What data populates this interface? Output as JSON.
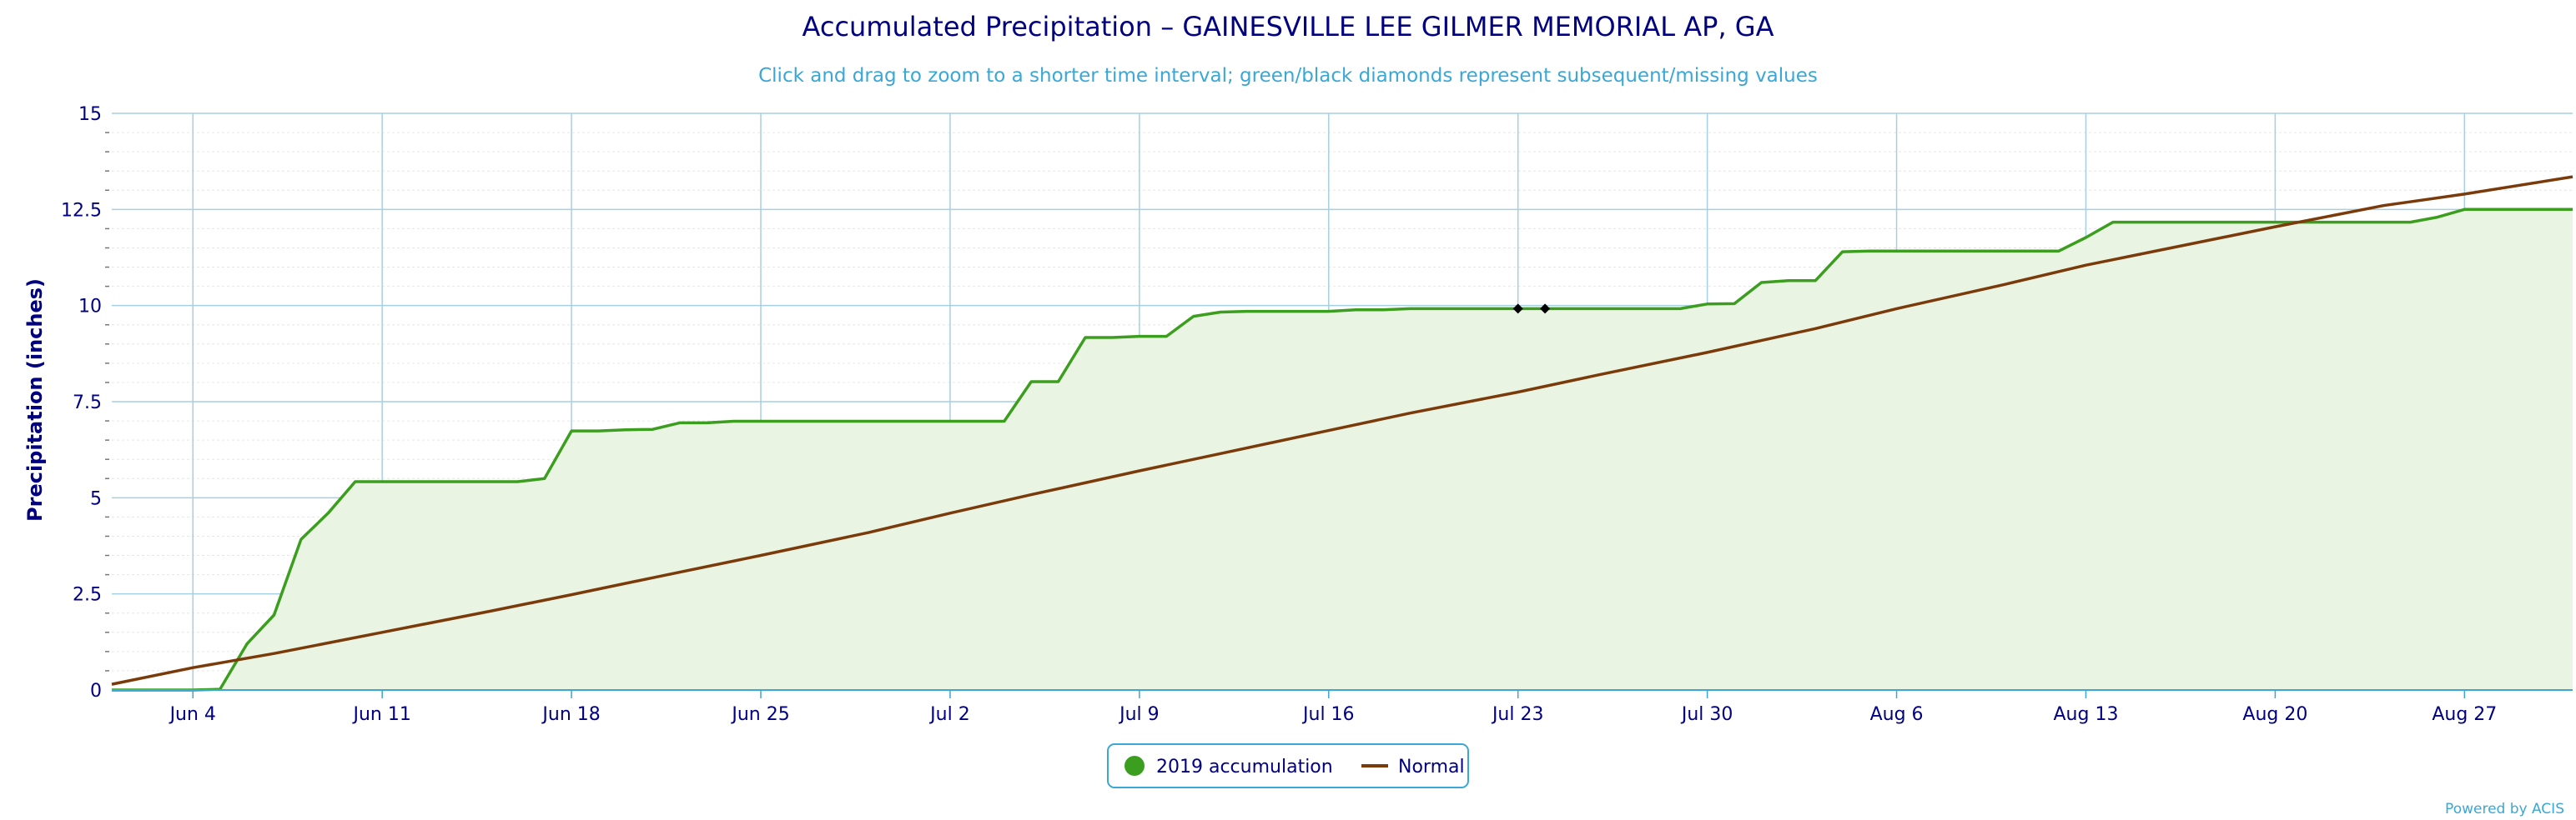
{
  "chart_data": {
    "type": "area",
    "title": "Accumulated Precipitation – GAINESVILLE LEE GILMER MEMORIAL AP, GA",
    "subtitle": "Click and drag to zoom to a shorter time interval; green/black diamonds represent subsequent/missing values",
    "ylabel": "Precipitation (inches)",
    "xlabel": "",
    "x_range": [
      "2019-06-01",
      "2019-08-31"
    ],
    "ylim": [
      0,
      15
    ],
    "y_ticks": [
      0,
      2.5,
      5,
      7.5,
      10,
      12.5,
      15
    ],
    "y_tick_labels": [
      "0",
      "2.5",
      "5",
      "7.5",
      "10",
      "12.5",
      "15"
    ],
    "x_ticks": [
      {
        "date": "2019-06-04",
        "label": "Jun 4"
      },
      {
        "date": "2019-06-11",
        "label": "Jun 11"
      },
      {
        "date": "2019-06-18",
        "label": "Jun 18"
      },
      {
        "date": "2019-06-25",
        "label": "Jun 25"
      },
      {
        "date": "2019-07-02",
        "label": "Jul 2"
      },
      {
        "date": "2019-07-09",
        "label": "Jul 9"
      },
      {
        "date": "2019-07-16",
        "label": "Jul 16"
      },
      {
        "date": "2019-07-23",
        "label": "Jul 23"
      },
      {
        "date": "2019-07-30",
        "label": "Jul 30"
      },
      {
        "date": "2019-08-06",
        "label": "Aug 6"
      },
      {
        "date": "2019-08-13",
        "label": "Aug 13"
      },
      {
        "date": "2019-08-20",
        "label": "Aug 20"
      },
      {
        "date": "2019-08-27",
        "label": "Aug 27"
      }
    ],
    "grid": true,
    "legend_position": "bottom-center",
    "series": [
      {
        "name": "2019 accumulation",
        "color": "#3c9e1e",
        "fill": "#eaf4e3",
        "points": [
          [
            "2019-06-01",
            0
          ],
          [
            "2019-06-02",
            0
          ],
          [
            "2019-06-03",
            0
          ],
          [
            "2019-06-04",
            0
          ],
          [
            "2019-06-05",
            0.02
          ],
          [
            "2019-06-06",
            1.2
          ],
          [
            "2019-06-07",
            1.95
          ],
          [
            "2019-06-08",
            3.92
          ],
          [
            "2019-06-09",
            4.6
          ],
          [
            "2019-06-10",
            5.42
          ],
          [
            "2019-06-11",
            5.42
          ],
          [
            "2019-06-12",
            5.42
          ],
          [
            "2019-06-13",
            5.42
          ],
          [
            "2019-06-14",
            5.42
          ],
          [
            "2019-06-15",
            5.42
          ],
          [
            "2019-06-16",
            5.42
          ],
          [
            "2019-06-17",
            5.5
          ],
          [
            "2019-06-18",
            6.74
          ],
          [
            "2019-06-19",
            6.74
          ],
          [
            "2019-06-20",
            6.77
          ],
          [
            "2019-06-21",
            6.78
          ],
          [
            "2019-06-22",
            6.95
          ],
          [
            "2019-06-23",
            6.95
          ],
          [
            "2019-06-24",
            6.99
          ],
          [
            "2019-06-25",
            6.99
          ],
          [
            "2019-06-26",
            6.99
          ],
          [
            "2019-06-27",
            6.99
          ],
          [
            "2019-06-28",
            6.99
          ],
          [
            "2019-06-29",
            6.99
          ],
          [
            "2019-06-30",
            6.99
          ],
          [
            "2019-07-01",
            6.99
          ],
          [
            "2019-07-02",
            6.99
          ],
          [
            "2019-07-03",
            6.99
          ],
          [
            "2019-07-04",
            6.99
          ],
          [
            "2019-07-05",
            8.02
          ],
          [
            "2019-07-06",
            8.02
          ],
          [
            "2019-07-07",
            9.17
          ],
          [
            "2019-07-08",
            9.17
          ],
          [
            "2019-07-09",
            9.2
          ],
          [
            "2019-07-10",
            9.2
          ],
          [
            "2019-07-11",
            9.72
          ],
          [
            "2019-07-12",
            9.83
          ],
          [
            "2019-07-13",
            9.85
          ],
          [
            "2019-07-14",
            9.85
          ],
          [
            "2019-07-15",
            9.85
          ],
          [
            "2019-07-16",
            9.85
          ],
          [
            "2019-07-17",
            9.89
          ],
          [
            "2019-07-18",
            9.89
          ],
          [
            "2019-07-19",
            9.92
          ],
          [
            "2019-07-20",
            9.92
          ],
          [
            "2019-07-21",
            9.92
          ],
          [
            "2019-07-22",
            9.92
          ],
          [
            "2019-07-23",
            9.92
          ],
          [
            "2019-07-24",
            9.92
          ],
          [
            "2019-07-25",
            9.92
          ],
          [
            "2019-07-26",
            9.92
          ],
          [
            "2019-07-27",
            9.92
          ],
          [
            "2019-07-28",
            9.92
          ],
          [
            "2019-07-29",
            9.92
          ],
          [
            "2019-07-30",
            10.04
          ],
          [
            "2019-07-31",
            10.05
          ],
          [
            "2019-08-01",
            10.6
          ],
          [
            "2019-08-02",
            10.65
          ],
          [
            "2019-08-03",
            10.65
          ],
          [
            "2019-08-04",
            11.4
          ],
          [
            "2019-08-05",
            11.42
          ],
          [
            "2019-08-06",
            11.42
          ],
          [
            "2019-08-07",
            11.42
          ],
          [
            "2019-08-08",
            11.42
          ],
          [
            "2019-08-09",
            11.42
          ],
          [
            "2019-08-10",
            11.42
          ],
          [
            "2019-08-11",
            11.42
          ],
          [
            "2019-08-12",
            11.42
          ],
          [
            "2019-08-13",
            11.77
          ],
          [
            "2019-08-14",
            12.17
          ],
          [
            "2019-08-15",
            12.17
          ],
          [
            "2019-08-16",
            12.17
          ],
          [
            "2019-08-17",
            12.17
          ],
          [
            "2019-08-18",
            12.17
          ],
          [
            "2019-08-19",
            12.17
          ],
          [
            "2019-08-20",
            12.17
          ],
          [
            "2019-08-21",
            12.17
          ],
          [
            "2019-08-22",
            12.17
          ],
          [
            "2019-08-23",
            12.17
          ],
          [
            "2019-08-24",
            12.17
          ],
          [
            "2019-08-25",
            12.17
          ],
          [
            "2019-08-26",
            12.3
          ],
          [
            "2019-08-27",
            12.5
          ],
          [
            "2019-08-28",
            12.5
          ],
          [
            "2019-08-29",
            12.5
          ],
          [
            "2019-08-30",
            12.5
          ],
          [
            "2019-08-31",
            12.5
          ]
        ],
        "missing_markers": [
          [
            "2019-07-23",
            9.92
          ],
          [
            "2019-07-24",
            9.92
          ]
        ],
        "missing_marker_color": "#000000"
      },
      {
        "name": "Normal",
        "color": "#7a3a0a",
        "points": [
          [
            "2019-06-01",
            0.15
          ],
          [
            "2019-06-04",
            0.58
          ],
          [
            "2019-06-07",
            0.95
          ],
          [
            "2019-06-11",
            1.5
          ],
          [
            "2019-06-15",
            2.05
          ],
          [
            "2019-06-18",
            2.48
          ],
          [
            "2019-06-21",
            2.92
          ],
          [
            "2019-06-25",
            3.5
          ],
          [
            "2019-06-29",
            4.1
          ],
          [
            "2019-07-02",
            4.6
          ],
          [
            "2019-07-05",
            5.08
          ],
          [
            "2019-07-09",
            5.7
          ],
          [
            "2019-07-12",
            6.15
          ],
          [
            "2019-07-16",
            6.75
          ],
          [
            "2019-07-19",
            7.2
          ],
          [
            "2019-07-23",
            7.75
          ],
          [
            "2019-07-26",
            8.2
          ],
          [
            "2019-07-30",
            8.78
          ],
          [
            "2019-08-03",
            9.4
          ],
          [
            "2019-08-06",
            9.92
          ],
          [
            "2019-08-10",
            10.55
          ],
          [
            "2019-08-13",
            11.05
          ],
          [
            "2019-08-17",
            11.62
          ],
          [
            "2019-08-20",
            12.05
          ],
          [
            "2019-08-24",
            12.6
          ],
          [
            "2019-08-27",
            12.9
          ],
          [
            "2019-08-31",
            13.35
          ]
        ]
      }
    ],
    "credits": "Powered by ACIS"
  }
}
